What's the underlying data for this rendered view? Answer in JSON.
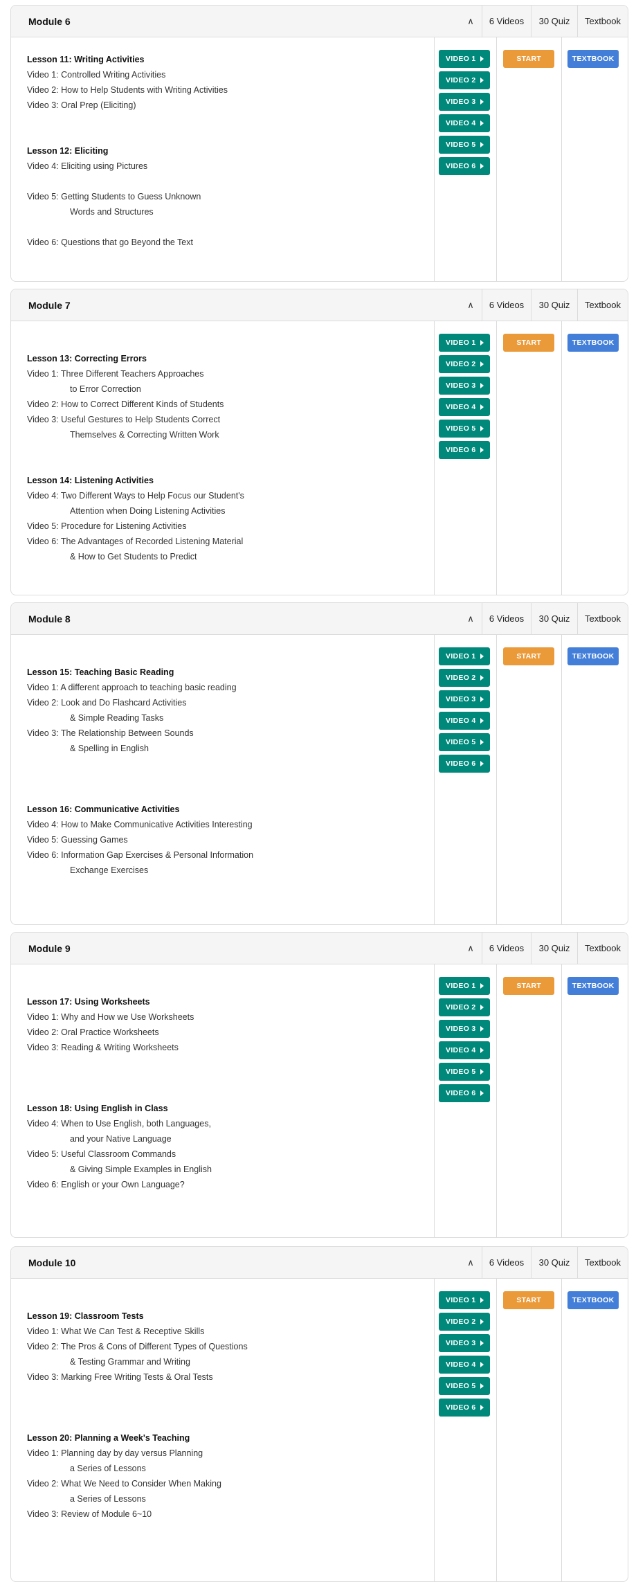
{
  "colors": {
    "video": "#00897b",
    "start": "#ea9a38",
    "textbook": "#437fd9"
  },
  "header_labels": {
    "videos": "6 Videos",
    "quiz": "30 Quiz",
    "textbook": "Textbook"
  },
  "buttons": {
    "videos": [
      "VIDEO 1",
      "VIDEO 2",
      "VIDEO 3",
      "VIDEO 4",
      "VIDEO 5",
      "VIDEO 6"
    ],
    "start": "START",
    "textbook": "TEXTBOOK"
  },
  "modules": [
    {
      "title": "Module 6",
      "lines": [
        {
          "kind": "title",
          "text": "Lesson 11: Writing Activities"
        },
        {
          "kind": "video",
          "text": "Video 1: Controlled Writing Activities"
        },
        {
          "kind": "video",
          "text": "Video 2: How to Help Students with Writing Activities"
        },
        {
          "kind": "video",
          "text": "Video 3: Oral Prep (Eliciting)"
        },
        {
          "kind": "blank"
        },
        {
          "kind": "blank"
        },
        {
          "kind": "title",
          "text": "Lesson 12: Eliciting"
        },
        {
          "kind": "video",
          "text": "Video 4: Eliciting using Pictures"
        },
        {
          "kind": "blank"
        },
        {
          "kind": "video",
          "text": "Video 5: Getting Students to Guess Unknown"
        },
        {
          "kind": "cont",
          "text": "Words and Structures"
        },
        {
          "kind": "blank"
        },
        {
          "kind": "video",
          "text": "Video 6: Questions that go Beyond the Text"
        }
      ]
    },
    {
      "title": "Module 7",
      "lines": [
        {
          "kind": "blank"
        },
        {
          "kind": "title",
          "text": "Lesson 13: Correcting Errors"
        },
        {
          "kind": "video",
          "text": "Video 1: Three Different Teachers Approaches"
        },
        {
          "kind": "cont",
          "text": "to Error Correction"
        },
        {
          "kind": "video",
          "text": "Video 2: How to Correct Different Kinds of Students"
        },
        {
          "kind": "video",
          "text": "Video 3: Useful Gestures to Help Students Correct"
        },
        {
          "kind": "cont",
          "text": "Themselves & Correcting Written Work"
        },
        {
          "kind": "blank"
        },
        {
          "kind": "blank"
        },
        {
          "kind": "title",
          "text": "Lesson 14: Listening Activities"
        },
        {
          "kind": "video",
          "text": "Video 4: Two Different Ways to Help Focus our Student's"
        },
        {
          "kind": "cont",
          "text": "Attention when Doing Listening Activities"
        },
        {
          "kind": "video",
          "text": "Video 5: Procedure for Listening Activities"
        },
        {
          "kind": "video",
          "text": "Video 6: The Advantages of Recorded Listening Material"
        },
        {
          "kind": "cont",
          "text": "& How to Get Students to Predict"
        }
      ]
    },
    {
      "title": "Module 8",
      "lines": [
        {
          "kind": "blank"
        },
        {
          "kind": "title",
          "text": "Lesson 15: Teaching Basic Reading"
        },
        {
          "kind": "video",
          "text": "Video 1: A different approach to teaching basic reading"
        },
        {
          "kind": "video",
          "text": "Video 2: Look and Do Flashcard Activities"
        },
        {
          "kind": "cont",
          "text": "& Simple Reading Tasks"
        },
        {
          "kind": "video",
          "text": "Video 3: The Relationship Between Sounds"
        },
        {
          "kind": "cont",
          "text": "& Spelling in English"
        },
        {
          "kind": "blank"
        },
        {
          "kind": "blank"
        },
        {
          "kind": "blank"
        },
        {
          "kind": "title",
          "text": "Lesson 16: Communicative Activities"
        },
        {
          "kind": "video",
          "text": "Video 4: How to Make Communicative Activities Interesting"
        },
        {
          "kind": "video",
          "text": "Video 5: Guessing Games"
        },
        {
          "kind": "video",
          "text": "Video 6: Information Gap Exercises & Personal Information"
        },
        {
          "kind": "cont",
          "text": "Exchange Exercises"
        }
      ]
    },
    {
      "title": "Module 9",
      "lines": [
        {
          "kind": "blank"
        },
        {
          "kind": "title",
          "text": "Lesson 17: Using Worksheets"
        },
        {
          "kind": "video",
          "text": "Video 1: Why and How we Use Worksheets"
        },
        {
          "kind": "video",
          "text": "Video 2: Oral Practice Worksheets"
        },
        {
          "kind": "video",
          "text": "Video 3: Reading & Writing Worksheets"
        },
        {
          "kind": "blank"
        },
        {
          "kind": "blank"
        },
        {
          "kind": "blank"
        },
        {
          "kind": "title",
          "text": "Lesson 18: Using English in Class"
        },
        {
          "kind": "video",
          "text": "Video 4: When to Use English, both Languages,"
        },
        {
          "kind": "cont",
          "text": "and your Native Language"
        },
        {
          "kind": "video",
          "text": "Video 5: Useful Classroom Commands"
        },
        {
          "kind": "cont",
          "text": "& Giving Simple Examples in English"
        },
        {
          "kind": "video",
          "text": "Video 6: English or your Own Language?"
        }
      ]
    },
    {
      "title": "Module 10",
      "lines": [
        {
          "kind": "blank"
        },
        {
          "kind": "title",
          "text": "Lesson 19: Classroom Tests"
        },
        {
          "kind": "video",
          "text": "Video 1: What We Can Test & Receptive Skills"
        },
        {
          "kind": "video",
          "text": "Video 2: The Pros & Cons of Different Types of Questions"
        },
        {
          "kind": "cont",
          "text": "& Testing Grammar and Writing"
        },
        {
          "kind": "video",
          "text": "Video 3: Marking Free Writing Tests & Oral Tests"
        },
        {
          "kind": "blank"
        },
        {
          "kind": "blank"
        },
        {
          "kind": "blank"
        },
        {
          "kind": "title",
          "text": "Lesson 20: Planning a Week's Teaching"
        },
        {
          "kind": "video",
          "text": "Video 1: Planning day by day versus Planning"
        },
        {
          "kind": "cont",
          "text": "a Series of Lessons"
        },
        {
          "kind": "video",
          "text": "Video 2: What We Need to Consider When Making"
        },
        {
          "kind": "cont",
          "text": "a Series of Lessons"
        },
        {
          "kind": "video",
          "text": "Video 3: Review of Module 6~10"
        }
      ]
    }
  ]
}
